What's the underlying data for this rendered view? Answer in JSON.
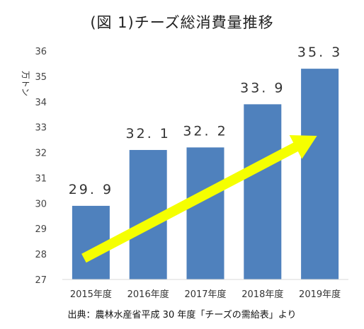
{
  "title": "(図 1)チーズ総消費量推移",
  "source": "出典：農林水産省平成 30 年度「チーズの需給表」より",
  "colors": {
    "bar": "#4F81BD",
    "arrow": "#F5FF00",
    "axis": "#D9D9D9"
  },
  "chart_data": {
    "type": "bar",
    "title": "(図 1)チーズ総消費量推移",
    "xlabel": "",
    "ylabel": "万トン",
    "categories": [
      "2015年度",
      "2016年度",
      "2017年度",
      "2018年度",
      "2019年度"
    ],
    "values": [
      29.9,
      32.1,
      32.2,
      33.9,
      35.3
    ],
    "data_labels": [
      "29. 9",
      "32. 1",
      "32. 2",
      "33. 9",
      "35. 3"
    ],
    "ylim": [
      27,
      36
    ],
    "yticks": [
      27,
      28,
      29,
      30,
      31,
      32,
      33,
      34,
      35,
      36
    ],
    "grid": false,
    "annotation": "yellow upward trend arrow from 2015年度 to 2019年度"
  }
}
